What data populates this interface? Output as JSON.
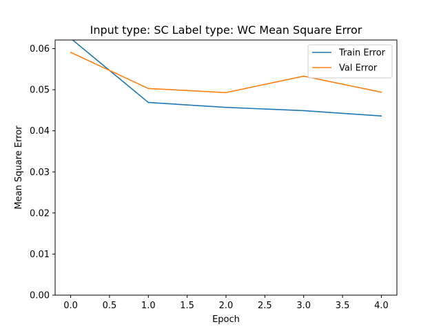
{
  "chart_data": {
    "type": "line",
    "title": "Input type: SC Label type: WC    Mean Square Error",
    "xlabel": "Epoch",
    "ylabel": "Mean Square Error",
    "xlim": [
      -0.2,
      4.2
    ],
    "ylim": [
      0.0,
      0.0621
    ],
    "x_ticks": [
      0.0,
      0.5,
      1.0,
      1.5,
      2.0,
      2.5,
      3.0,
      3.5,
      4.0
    ],
    "y_ticks": [
      0.0,
      0.01,
      0.02,
      0.03,
      0.04,
      0.05,
      0.06
    ],
    "x_tick_labels": [
      "0.0",
      "0.5",
      "1.0",
      "1.5",
      "2.0",
      "2.5",
      "3.0",
      "3.5",
      "4.0"
    ],
    "y_tick_labels": [
      "0.00",
      "0.01",
      "0.02",
      "0.03",
      "0.04",
      "0.05",
      "0.06"
    ],
    "x": [
      0,
      1,
      2,
      3,
      4
    ],
    "series": [
      {
        "name": "Train Error",
        "color": "#1f77b4",
        "values": [
          0.0625,
          0.0469,
          0.0457,
          0.0449,
          0.0436
        ]
      },
      {
        "name": "Val Error",
        "color": "#ff7f0e",
        "values": [
          0.0591,
          0.0503,
          0.0493,
          0.0533,
          0.0494
        ]
      }
    ],
    "legend": "top-right",
    "grid": false
  }
}
